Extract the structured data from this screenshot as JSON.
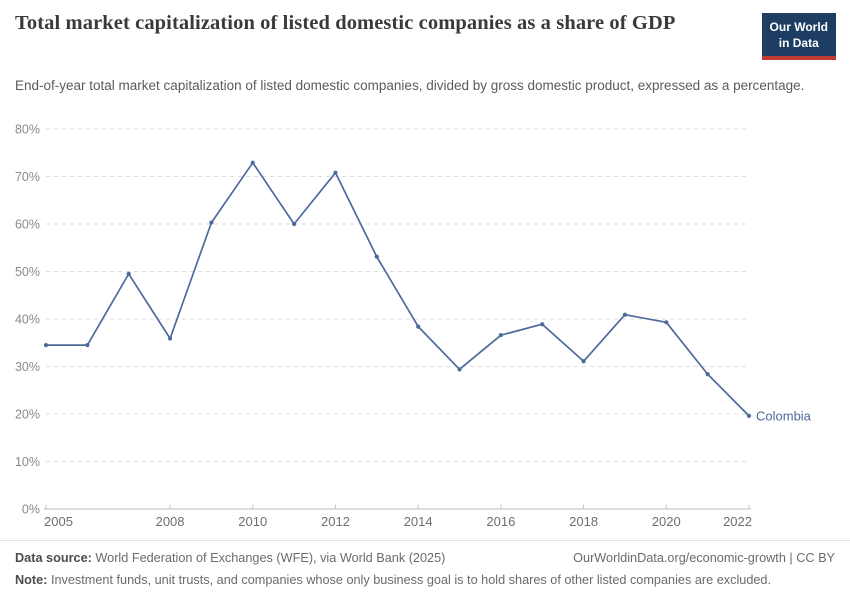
{
  "header": {
    "title": "Total market capitalization of listed domestic companies as a share of GDP",
    "subtitle": "End-of-year total market capitalization of listed domestic companies, divided by gross domestic product, expressed as a percentage.",
    "logo": {
      "line1": "Our World",
      "line2": "in Data",
      "bg_color": "#1d3d63",
      "accent_color": "#c13a36"
    }
  },
  "chart_data": {
    "type": "line",
    "title": "Total market capitalization of listed domestic companies as a share of GDP",
    "x": [
      2005,
      2006,
      2007,
      2008,
      2009,
      2010,
      2011,
      2012,
      2013,
      2014,
      2015,
      2016,
      2017,
      2018,
      2019,
      2020,
      2021,
      2022
    ],
    "series": [
      {
        "name": "Colombia",
        "color": "#4c6a9c",
        "values": [
          34.5,
          34.5,
          49.5,
          35.9,
          60.3,
          72.9,
          60.0,
          70.8,
          53.1,
          38.4,
          29.4,
          36.6,
          38.9,
          31.1,
          40.9,
          39.3,
          28.4,
          19.6
        ]
      }
    ],
    "xlim": [
      2005,
      2022
    ],
    "ylim": [
      0,
      80
    ],
    "y_ticks": [
      0,
      10,
      20,
      30,
      40,
      50,
      60,
      70,
      80
    ],
    "y_tick_suffix": "%",
    "x_tick_labels": [
      "2005",
      "2008",
      "2010",
      "2012",
      "2014",
      "2016",
      "2018",
      "2020",
      "2022"
    ],
    "grid": "horizontal-dashed",
    "legend_position": "end-of-line-label",
    "end_label": "Colombia",
    "colors": {
      "gridline": "#dcdcdc",
      "axis": "#bcbcbc",
      "tick": "#c9c9c9",
      "y_label": "#8a8a8a",
      "x_label": "#6e6e6e"
    }
  },
  "footer": {
    "datasource_label": "Data source:",
    "datasource_text": "World Federation of Exchanges (WFE), via World Bank (2025)",
    "link_text": "OurWorldinData.org/economic-growth | CC BY",
    "note_label": "Note:",
    "note_text": "Investment funds, unit trusts, and companies whose only business goal is to hold shares of other listed companies are excluded."
  }
}
